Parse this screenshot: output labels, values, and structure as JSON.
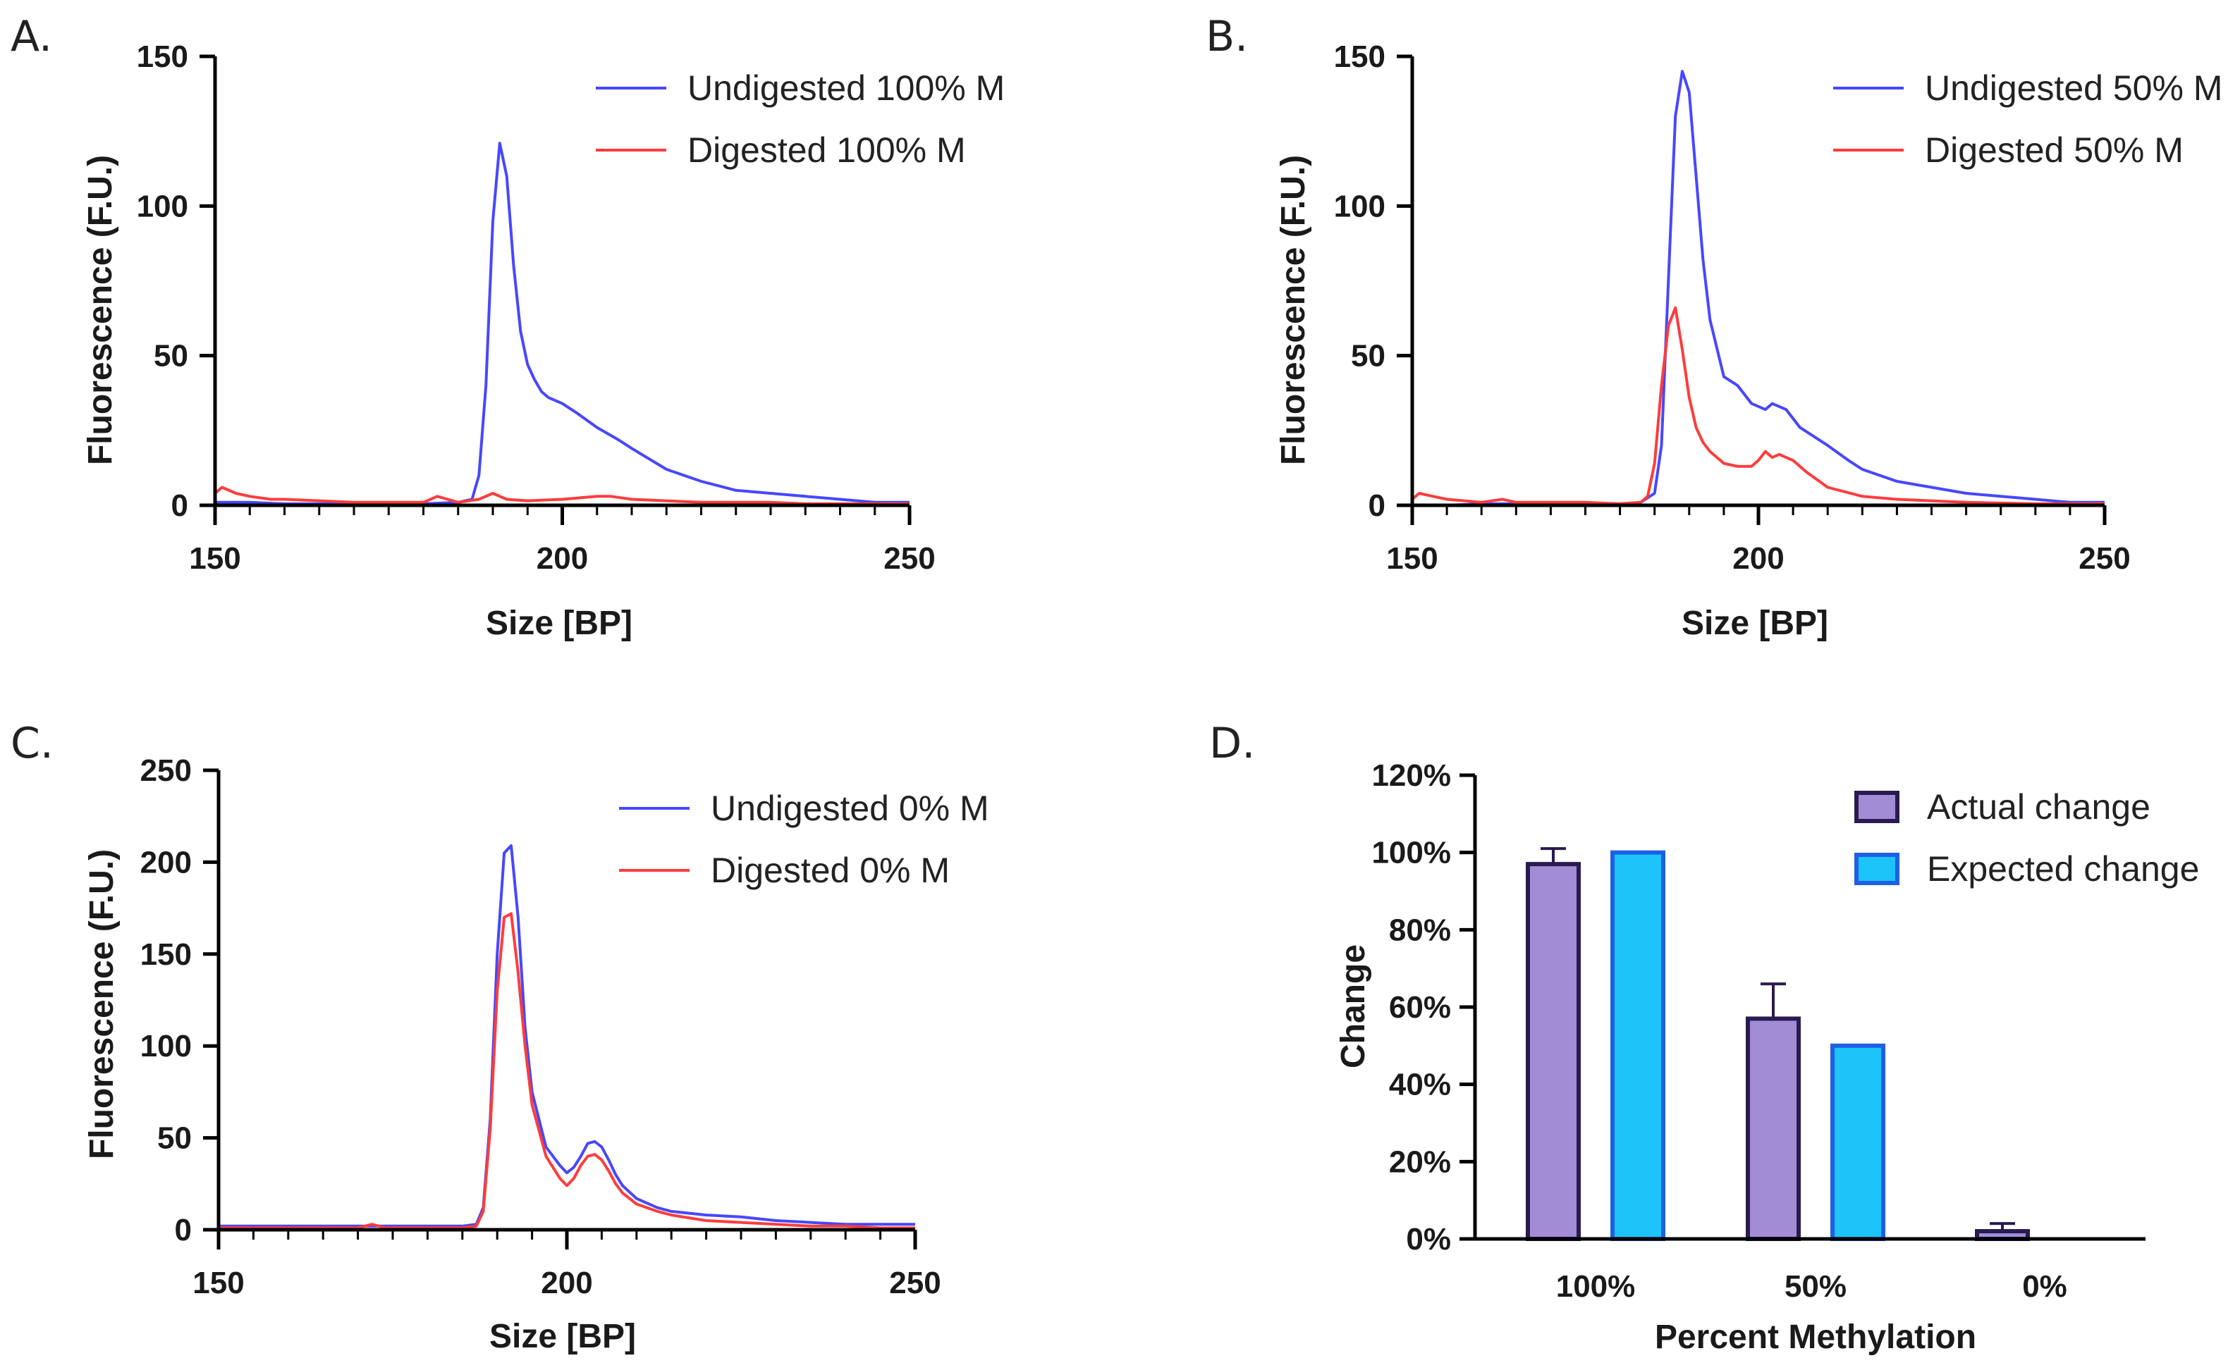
{
  "panels": [
    {
      "label": "A.",
      "chart_data": {
        "type": "line",
        "title": "",
        "xlabel": "Size [BP]",
        "ylabel": "Fluorescence (F.U.)",
        "xlim": [
          150,
          250
        ],
        "ylim": [
          0,
          150
        ],
        "xticks": [
          150,
          200,
          250
        ],
        "yticks": [
          0,
          50,
          100,
          150
        ],
        "legend": "top-right",
        "series": [
          {
            "name": "Undigested 100% M",
            "color": "#4747ff",
            "x": [
              150,
              155,
              160,
              165,
              170,
              175,
              180,
              185,
              187,
              188,
              189,
              190,
              191,
              192,
              193,
              194,
              195,
              196,
              197,
              198,
              200,
              202,
              205,
              208,
              210,
              215,
              220,
              225,
              230,
              235,
              240,
              245,
              250
            ],
            "y": [
              1,
              1,
              0.5,
              0.5,
              0.5,
              0.5,
              0.5,
              1,
              2,
              10,
              40,
              95,
              121,
              110,
              80,
              58,
              47,
              42,
              38,
              36,
              34,
              31,
              26,
              22,
              19,
              12,
              8,
              5,
              4,
              3,
              2,
              1,
              1
            ]
          },
          {
            "name": "Digested 100% M",
            "color": "#ff3c3c",
            "x": [
              150,
              151,
              153,
              155,
              158,
              160,
              165,
              170,
              175,
              180,
              182,
              185,
              188,
              190,
              192,
              195,
              200,
              205,
              207,
              210,
              215,
              220,
              225,
              230,
              235,
              240,
              245,
              250
            ],
            "y": [
              4,
              6,
              4,
              3,
              2,
              2,
              1.5,
              1,
              1,
              1,
              3,
              1,
              2,
              4,
              2,
              1.5,
              2,
              3,
              3,
              2,
              1.5,
              1,
              1,
              1,
              0.5,
              0.5,
              0.5,
              0.5
            ]
          }
        ]
      }
    },
    {
      "label": "B.",
      "chart_data": {
        "type": "line",
        "title": "",
        "xlabel": "Size [BP]",
        "ylabel": "Fluorescence (F.U.)",
        "xlim": [
          150,
          250
        ],
        "ylim": [
          0,
          150
        ],
        "xticks": [
          150,
          200,
          250
        ],
        "yticks": [
          0,
          50,
          100,
          150
        ],
        "legend": "top-right",
        "series": [
          {
            "name": "Undigested 50% M",
            "color": "#4747ff",
            "x": [
              150,
              155,
              160,
              165,
              170,
              175,
              180,
              183,
              185,
              186,
              187,
              188,
              189,
              190,
              191,
              192,
              193,
              195,
              197,
              199,
              201,
              202,
              203,
              204,
              206,
              208,
              210,
              213,
              215,
              220,
              225,
              230,
              235,
              240,
              245,
              250
            ],
            "y": [
              0,
              0,
              0.5,
              0.5,
              0.5,
              0.5,
              0.5,
              1,
              4,
              20,
              75,
              130,
              145,
              138,
              110,
              82,
              62,
              43,
              40,
              34,
              32,
              34,
              33,
              32,
              26,
              23,
              20,
              15,
              12,
              8,
              6,
              4,
              3,
              2,
              1,
              1
            ]
          },
          {
            "name": "Digested 50% M",
            "color": "#ff3c3c",
            "x": [
              150,
              151,
              153,
              155,
              160,
              163,
              165,
              170,
              175,
              180,
              183,
              184,
              185,
              186,
              187,
              188,
              189,
              190,
              191,
              192,
              193,
              195,
              197,
              199,
              200,
              201,
              202,
              203,
              205,
              207,
              210,
              215,
              220,
              225,
              230,
              240,
              250
            ],
            "y": [
              2,
              4,
              3,
              2,
              1,
              2,
              1,
              1,
              1,
              0.5,
              1,
              3,
              14,
              40,
              60,
              66,
              52,
              36,
              26,
              21,
              18,
              14,
              13,
              13,
              15,
              18,
              16,
              17,
              15,
              11,
              6,
              3,
              2,
              1.5,
              1,
              0.5,
              0.5
            ]
          }
        ]
      }
    },
    {
      "label": "C.",
      "chart_data": {
        "type": "line",
        "title": "",
        "xlabel": "Size [BP]",
        "ylabel": "Fluorescence (F.U.)",
        "xlim": [
          150,
          250
        ],
        "ylim": [
          0,
          250
        ],
        "xticks": [
          150,
          200,
          250
        ],
        "yticks": [
          0,
          50,
          100,
          150,
          200,
          250
        ],
        "legend": "top-right",
        "series": [
          {
            "name": "Undigested 0% M",
            "color": "#4747ff",
            "x": [
              150,
              155,
              160,
              165,
              170,
              175,
              180,
              185,
              187,
              188,
              189,
              190,
              191,
              192,
              193,
              194,
              195,
              197,
              199,
              200,
              201,
              202,
              203,
              204,
              205,
              206,
              207,
              208,
              210,
              213,
              215,
              220,
              225,
              230,
              235,
              240,
              245,
              250
            ],
            "y": [
              2,
              2,
              2,
              2,
              2,
              2,
              2,
              2,
              3,
              12,
              60,
              150,
              205,
              209,
              170,
              110,
              75,
              45,
              35,
              31,
              34,
              40,
              47,
              48,
              45,
              38,
              30,
              24,
              17,
              12,
              10,
              8,
              7,
              5,
              4,
              3,
              3,
              3
            ]
          },
          {
            "name": "Digested 0% M",
            "color": "#ff3c3c",
            "x": [
              150,
              155,
              160,
              165,
              170,
              172,
              174,
              180,
              185,
              187,
              188,
              189,
              190,
              191,
              192,
              193,
              194,
              195,
              197,
              199,
              200,
              201,
              202,
              203,
              204,
              205,
              206,
              207,
              208,
              210,
              213,
              215,
              220,
              225,
              230,
              235,
              240,
              245,
              250
            ],
            "y": [
              1,
              1,
              1,
              1,
              1,
              3,
              1,
              1,
              1,
              2,
              10,
              55,
              130,
              170,
              172,
              140,
              100,
              68,
              40,
              28,
              24,
              28,
              35,
              40,
              41,
              38,
              32,
              25,
              20,
              14,
              10,
              8,
              5,
              4,
              3,
              2,
              2,
              1,
              1
            ]
          }
        ]
      }
    },
    {
      "label": "D.",
      "chart_data": {
        "type": "bar",
        "title": "",
        "xlabel": "Percent Methylation",
        "ylabel": "Change",
        "categories": [
          "100%",
          "50%",
          "0%"
        ],
        "ylim": [
          0,
          120
        ],
        "yticks": [
          0,
          20,
          40,
          60,
          80,
          100,
          120
        ],
        "ytick_labels": [
          "0%",
          "20%",
          "40%",
          "60%",
          "80%",
          "100%",
          "120%"
        ],
        "legend": "top-right",
        "series": [
          {
            "name": "Actual change",
            "fill": "#a28cd6",
            "stroke": "#2a1b4e",
            "values": [
              97,
              57,
              2
            ],
            "errors": [
              4,
              9,
              2
            ]
          },
          {
            "name": "Expected change",
            "fill": "#1cc4fa",
            "stroke": "#1e5fe6",
            "values": [
              100,
              50,
              0
            ]
          }
        ]
      }
    }
  ]
}
